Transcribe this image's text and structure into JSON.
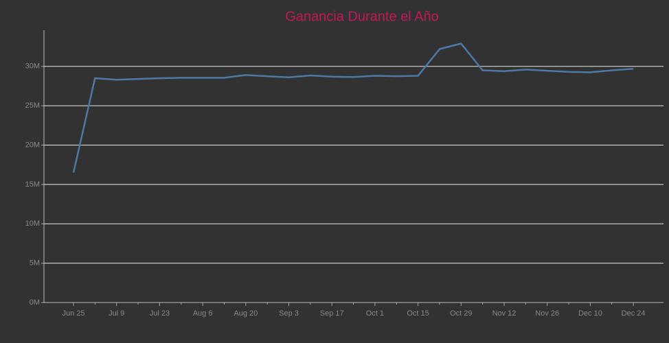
{
  "chart_data": {
    "type": "line",
    "title": "Ganancia Durante el Año",
    "categories": [
      "Jun 25",
      null,
      "Jul 9",
      null,
      "Jul 23",
      null,
      "Aug 6",
      null,
      "Aug 20",
      null,
      "Sep 3",
      null,
      "Sep 17",
      null,
      "Oct 1",
      null,
      "Oct 15",
      null,
      "Oct 29",
      null,
      "Nov 12",
      null,
      "Nov 26",
      null,
      "Dec 10",
      null,
      "Dec 24"
    ],
    "values": [
      16.5,
      28.5,
      28.3,
      28.4,
      28.5,
      28.55,
      28.55,
      28.55,
      28.9,
      28.75,
      28.6,
      28.85,
      28.7,
      28.65,
      28.8,
      28.75,
      28.8,
      32.2,
      32.9,
      29.5,
      29.4,
      29.6,
      29.45,
      29.3,
      29.25,
      29.5,
      29.7
    ],
    "color": "#4e79a7",
    "ylim": [
      0,
      34.6
    ],
    "yticks": [
      {
        "value": 0,
        "label": "0M"
      },
      {
        "value": 5,
        "label": "5M"
      },
      {
        "value": 10,
        "label": "10M"
      },
      {
        "value": 15,
        "label": "15M"
      },
      {
        "value": 20,
        "label": "20M"
      },
      {
        "value": 25,
        "label": "25M"
      },
      {
        "value": 30,
        "label": "30M"
      }
    ],
    "grid": true
  }
}
